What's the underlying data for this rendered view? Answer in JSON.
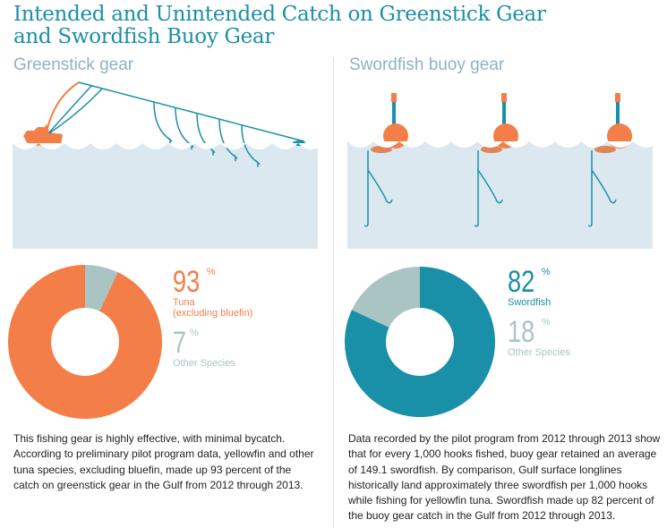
{
  "title": "Intended and Unintended Catch on Greenstick Gear and Swordfish Buoy Gear",
  "title_line1": "Intended and Unintended Catch on Greenstick Gear",
  "title_line2": "and Swordfish Buoy Gear",
  "colors": {
    "orange": "#f47e48",
    "teal": "#1a8fa8",
    "gray": "#aac4c4",
    "water": "#dce8ef"
  },
  "left": {
    "subtitle": "Greenstick gear",
    "illustration": "greenstick-boat-lines-icon",
    "main": {
      "value": "93",
      "unit": "%",
      "label1": "Tuna",
      "label2": "(excluding bluefin)"
    },
    "other": {
      "value": "7",
      "unit": "%",
      "label": "Other Species"
    },
    "body": "This fishing gear is highly effective, with minimal bycatch. According to preliminary pilot program data, yellowfin and other tuna species, excluding bluefin, made up 93 percent of the catch on greenstick gear in the Gulf from 2012 through 2013."
  },
  "right": {
    "subtitle": "Swordfish buoy gear",
    "illustration": "buoy-hook-icon",
    "main": {
      "value": "82",
      "unit": "%",
      "label1": "Swordfish"
    },
    "other": {
      "value": "18",
      "unit": "%",
      "label": "Other Species"
    },
    "body": "Data recorded by the pilot program from 2012 through 2013 show that for every 1,000 hooks fished, buoy gear retained an average of 149.1 swordfish. By comparison, Gulf surface longlines historically land approximately three swordfish per 1,000 hooks while fishing for yellowfin tuna. Swordfish made up 82 percent of the buoy gear catch in the Gulf from 2012 through 2013."
  },
  "chart_data": [
    {
      "type": "pie",
      "donut": true,
      "categories": [
        "Tuna (excluding bluefin)",
        "Other Species"
      ],
      "values": [
        93,
        7
      ],
      "colors": [
        "#f47e48",
        "#aac4c4"
      ]
    },
    {
      "type": "pie",
      "donut": true,
      "categories": [
        "Swordfish",
        "Other Species"
      ],
      "values": [
        82,
        18
      ],
      "colors": [
        "#1a8fa8",
        "#aac4c4"
      ]
    }
  ]
}
